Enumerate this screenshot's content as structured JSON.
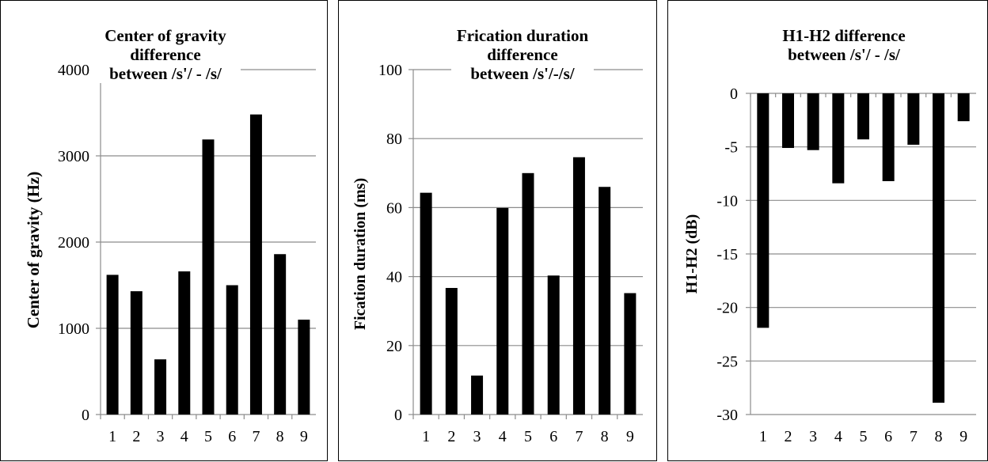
{
  "chart_data": [
    {
      "type": "bar",
      "title": "Center of gravity difference between /s'/ - /s/",
      "title_lines": [
        "Center of gravity",
        "difference",
        "between /s'/ - /s/"
      ],
      "xlabel": "",
      "ylabel": "Center of gravity (Hz)",
      "categories": [
        "1",
        "2",
        "3",
        "4",
        "5",
        "6",
        "7",
        "8",
        "9"
      ],
      "values": [
        1620,
        1430,
        640,
        1660,
        3190,
        1500,
        3480,
        1860,
        1100
      ],
      "ylim": [
        0,
        4000
      ],
      "yticks": [
        0,
        1000,
        2000,
        3000,
        4000
      ],
      "grid": true,
      "bar_color": "#000000",
      "grid_color": "#8c8c8c"
    },
    {
      "type": "bar",
      "title": "Frication duration difference between /s'/-/s/",
      "title_lines": [
        "Frication duration",
        "difference",
        "between /s'/-/s/"
      ],
      "xlabel": "",
      "ylabel": "Fication duration (ms)",
      "categories": [
        "1",
        "2",
        "3",
        "4",
        "5",
        "6",
        "7",
        "8",
        "9"
      ],
      "values": [
        64.3,
        36.7,
        11.3,
        59.9,
        70.0,
        40.3,
        74.6,
        66.0,
        35.2
      ],
      "ylim": [
        0,
        100
      ],
      "yticks": [
        0,
        20,
        40,
        60,
        80,
        100
      ],
      "grid": true,
      "bar_color": "#000000",
      "grid_color": "#8c8c8c"
    },
    {
      "type": "bar",
      "title": "H1-H2 difference between /s'/ - /s/",
      "title_lines": [
        "H1-H2 difference",
        "between /s'/ - /s/"
      ],
      "xlabel": "",
      "ylabel": "H1-H2 (dB)",
      "categories": [
        "1",
        "2",
        "3",
        "4",
        "5",
        "6",
        "7",
        "8",
        "9"
      ],
      "values": [
        -21.9,
        -5.1,
        -5.3,
        -8.4,
        -4.3,
        -8.2,
        -4.8,
        -28.9,
        -2.6
      ],
      "ylim": [
        -30,
        0
      ],
      "yticks": [
        -30,
        -25,
        -20,
        -15,
        -10,
        -5,
        0
      ],
      "grid": true,
      "bar_color": "#000000",
      "grid_color": "#8c8c8c"
    }
  ]
}
